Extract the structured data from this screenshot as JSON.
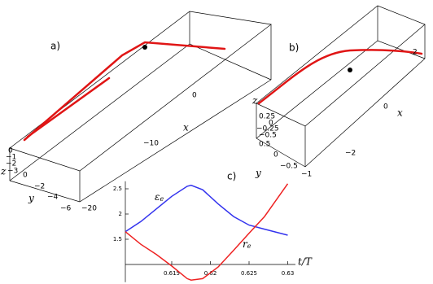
{
  "panels": [
    {
      "label": "a)",
      "x_label": "x",
      "y_label": "y",
      "z_label": "z",
      "x_ticks": [
        "0",
        "−10",
        "−20"
      ],
      "y_ticks": [
        "0",
        "−2",
        "−4",
        "−6"
      ],
      "z_ticks": [
        "0",
        "−1",
        "−2",
        "−3"
      ]
    },
    {
      "label": "b)",
      "x_label": "x",
      "y_label": "y",
      "z_label": "z",
      "x_ticks": [
        "2",
        "0",
        "−2"
      ],
      "y_ticks": [
        "0.5",
        "0",
        "−0.5",
        "−1"
      ],
      "z_ticks": [
        "0.25",
        "0",
        "−0.25",
        "−0.5"
      ]
    }
  ],
  "chart_data": {
    "type": "line",
    "label": "c)",
    "x_label": "t/T",
    "x": [
      0.609,
      0.611,
      0.613,
      0.615,
      0.617,
      0.6175,
      0.619,
      0.621,
      0.623,
      0.625,
      0.627,
      0.63
    ],
    "series": [
      {
        "name": "ε",
        "subscript": "e",
        "color": "#3333ee",
        "values": [
          1.65,
          1.85,
          2.1,
          2.35,
          2.55,
          2.57,
          2.48,
          2.2,
          1.95,
          1.78,
          1.7,
          1.58
        ]
      },
      {
        "name": "r",
        "subscript": "e",
        "color": "#ee2222",
        "values": [
          1.65,
          1.4,
          1.2,
          0.97,
          0.72,
          0.69,
          0.72,
          0.95,
          1.28,
          1.62,
          1.95,
          2.6
        ]
      }
    ],
    "xlim": [
      0.609,
      0.631
    ],
    "ylim": [
      0.65,
      2.65
    ],
    "x_axis_at": 1,
    "xticks": [
      0.615,
      0.62,
      0.625,
      0.63
    ],
    "yticks": [
      1.5,
      2,
      2.5
    ]
  }
}
